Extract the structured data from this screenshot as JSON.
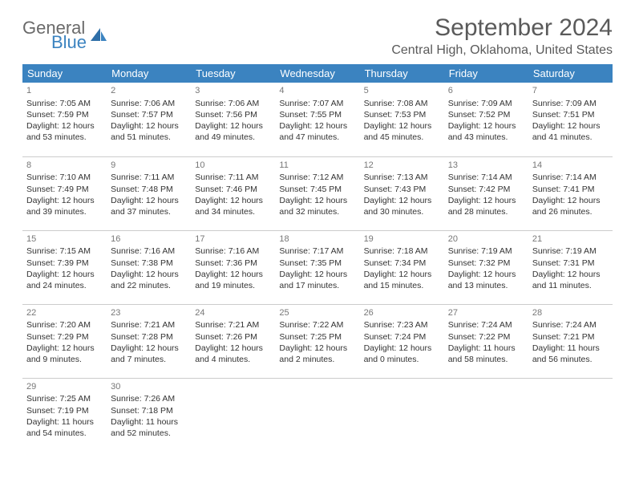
{
  "logo": {
    "word1": "General",
    "word2": "Blue"
  },
  "colors": {
    "header_bg": "#3b83c0",
    "header_fg": "#ffffff",
    "border": "#cccccc",
    "text": "#333333",
    "title": "#5a5a5a"
  },
  "calendar": {
    "title": "September 2024",
    "location": "Central High, Oklahoma, United States",
    "day_headers": [
      "Sunday",
      "Monday",
      "Tuesday",
      "Wednesday",
      "Thursday",
      "Friday",
      "Saturday"
    ],
    "weeks": [
      [
        {
          "n": "1",
          "sr": "7:05 AM",
          "ss": "7:59 PM",
          "dl": "12 hours and 53 minutes."
        },
        {
          "n": "2",
          "sr": "7:06 AM",
          "ss": "7:57 PM",
          "dl": "12 hours and 51 minutes."
        },
        {
          "n": "3",
          "sr": "7:06 AM",
          "ss": "7:56 PM",
          "dl": "12 hours and 49 minutes."
        },
        {
          "n": "4",
          "sr": "7:07 AM",
          "ss": "7:55 PM",
          "dl": "12 hours and 47 minutes."
        },
        {
          "n": "5",
          "sr": "7:08 AM",
          "ss": "7:53 PM",
          "dl": "12 hours and 45 minutes."
        },
        {
          "n": "6",
          "sr": "7:09 AM",
          "ss": "7:52 PM",
          "dl": "12 hours and 43 minutes."
        },
        {
          "n": "7",
          "sr": "7:09 AM",
          "ss": "7:51 PM",
          "dl": "12 hours and 41 minutes."
        }
      ],
      [
        {
          "n": "8",
          "sr": "7:10 AM",
          "ss": "7:49 PM",
          "dl": "12 hours and 39 minutes."
        },
        {
          "n": "9",
          "sr": "7:11 AM",
          "ss": "7:48 PM",
          "dl": "12 hours and 37 minutes."
        },
        {
          "n": "10",
          "sr": "7:11 AM",
          "ss": "7:46 PM",
          "dl": "12 hours and 34 minutes."
        },
        {
          "n": "11",
          "sr": "7:12 AM",
          "ss": "7:45 PM",
          "dl": "12 hours and 32 minutes."
        },
        {
          "n": "12",
          "sr": "7:13 AM",
          "ss": "7:43 PM",
          "dl": "12 hours and 30 minutes."
        },
        {
          "n": "13",
          "sr": "7:14 AM",
          "ss": "7:42 PM",
          "dl": "12 hours and 28 minutes."
        },
        {
          "n": "14",
          "sr": "7:14 AM",
          "ss": "7:41 PM",
          "dl": "12 hours and 26 minutes."
        }
      ],
      [
        {
          "n": "15",
          "sr": "7:15 AM",
          "ss": "7:39 PM",
          "dl": "12 hours and 24 minutes."
        },
        {
          "n": "16",
          "sr": "7:16 AM",
          "ss": "7:38 PM",
          "dl": "12 hours and 22 minutes."
        },
        {
          "n": "17",
          "sr": "7:16 AM",
          "ss": "7:36 PM",
          "dl": "12 hours and 19 minutes."
        },
        {
          "n": "18",
          "sr": "7:17 AM",
          "ss": "7:35 PM",
          "dl": "12 hours and 17 minutes."
        },
        {
          "n": "19",
          "sr": "7:18 AM",
          "ss": "7:34 PM",
          "dl": "12 hours and 15 minutes."
        },
        {
          "n": "20",
          "sr": "7:19 AM",
          "ss": "7:32 PM",
          "dl": "12 hours and 13 minutes."
        },
        {
          "n": "21",
          "sr": "7:19 AM",
          "ss": "7:31 PM",
          "dl": "12 hours and 11 minutes."
        }
      ],
      [
        {
          "n": "22",
          "sr": "7:20 AM",
          "ss": "7:29 PM",
          "dl": "12 hours and 9 minutes."
        },
        {
          "n": "23",
          "sr": "7:21 AM",
          "ss": "7:28 PM",
          "dl": "12 hours and 7 minutes."
        },
        {
          "n": "24",
          "sr": "7:21 AM",
          "ss": "7:26 PM",
          "dl": "12 hours and 4 minutes."
        },
        {
          "n": "25",
          "sr": "7:22 AM",
          "ss": "7:25 PM",
          "dl": "12 hours and 2 minutes."
        },
        {
          "n": "26",
          "sr": "7:23 AM",
          "ss": "7:24 PM",
          "dl": "12 hours and 0 minutes."
        },
        {
          "n": "27",
          "sr": "7:24 AM",
          "ss": "7:22 PM",
          "dl": "11 hours and 58 minutes."
        },
        {
          "n": "28",
          "sr": "7:24 AM",
          "ss": "7:21 PM",
          "dl": "11 hours and 56 minutes."
        }
      ],
      [
        {
          "n": "29",
          "sr": "7:25 AM",
          "ss": "7:19 PM",
          "dl": "11 hours and 54 minutes."
        },
        {
          "n": "30",
          "sr": "7:26 AM",
          "ss": "7:18 PM",
          "dl": "11 hours and 52 minutes."
        },
        null,
        null,
        null,
        null,
        null
      ]
    ],
    "labels": {
      "sunrise": "Sunrise:",
      "sunset": "Sunset:",
      "daylight": "Daylight:"
    }
  }
}
